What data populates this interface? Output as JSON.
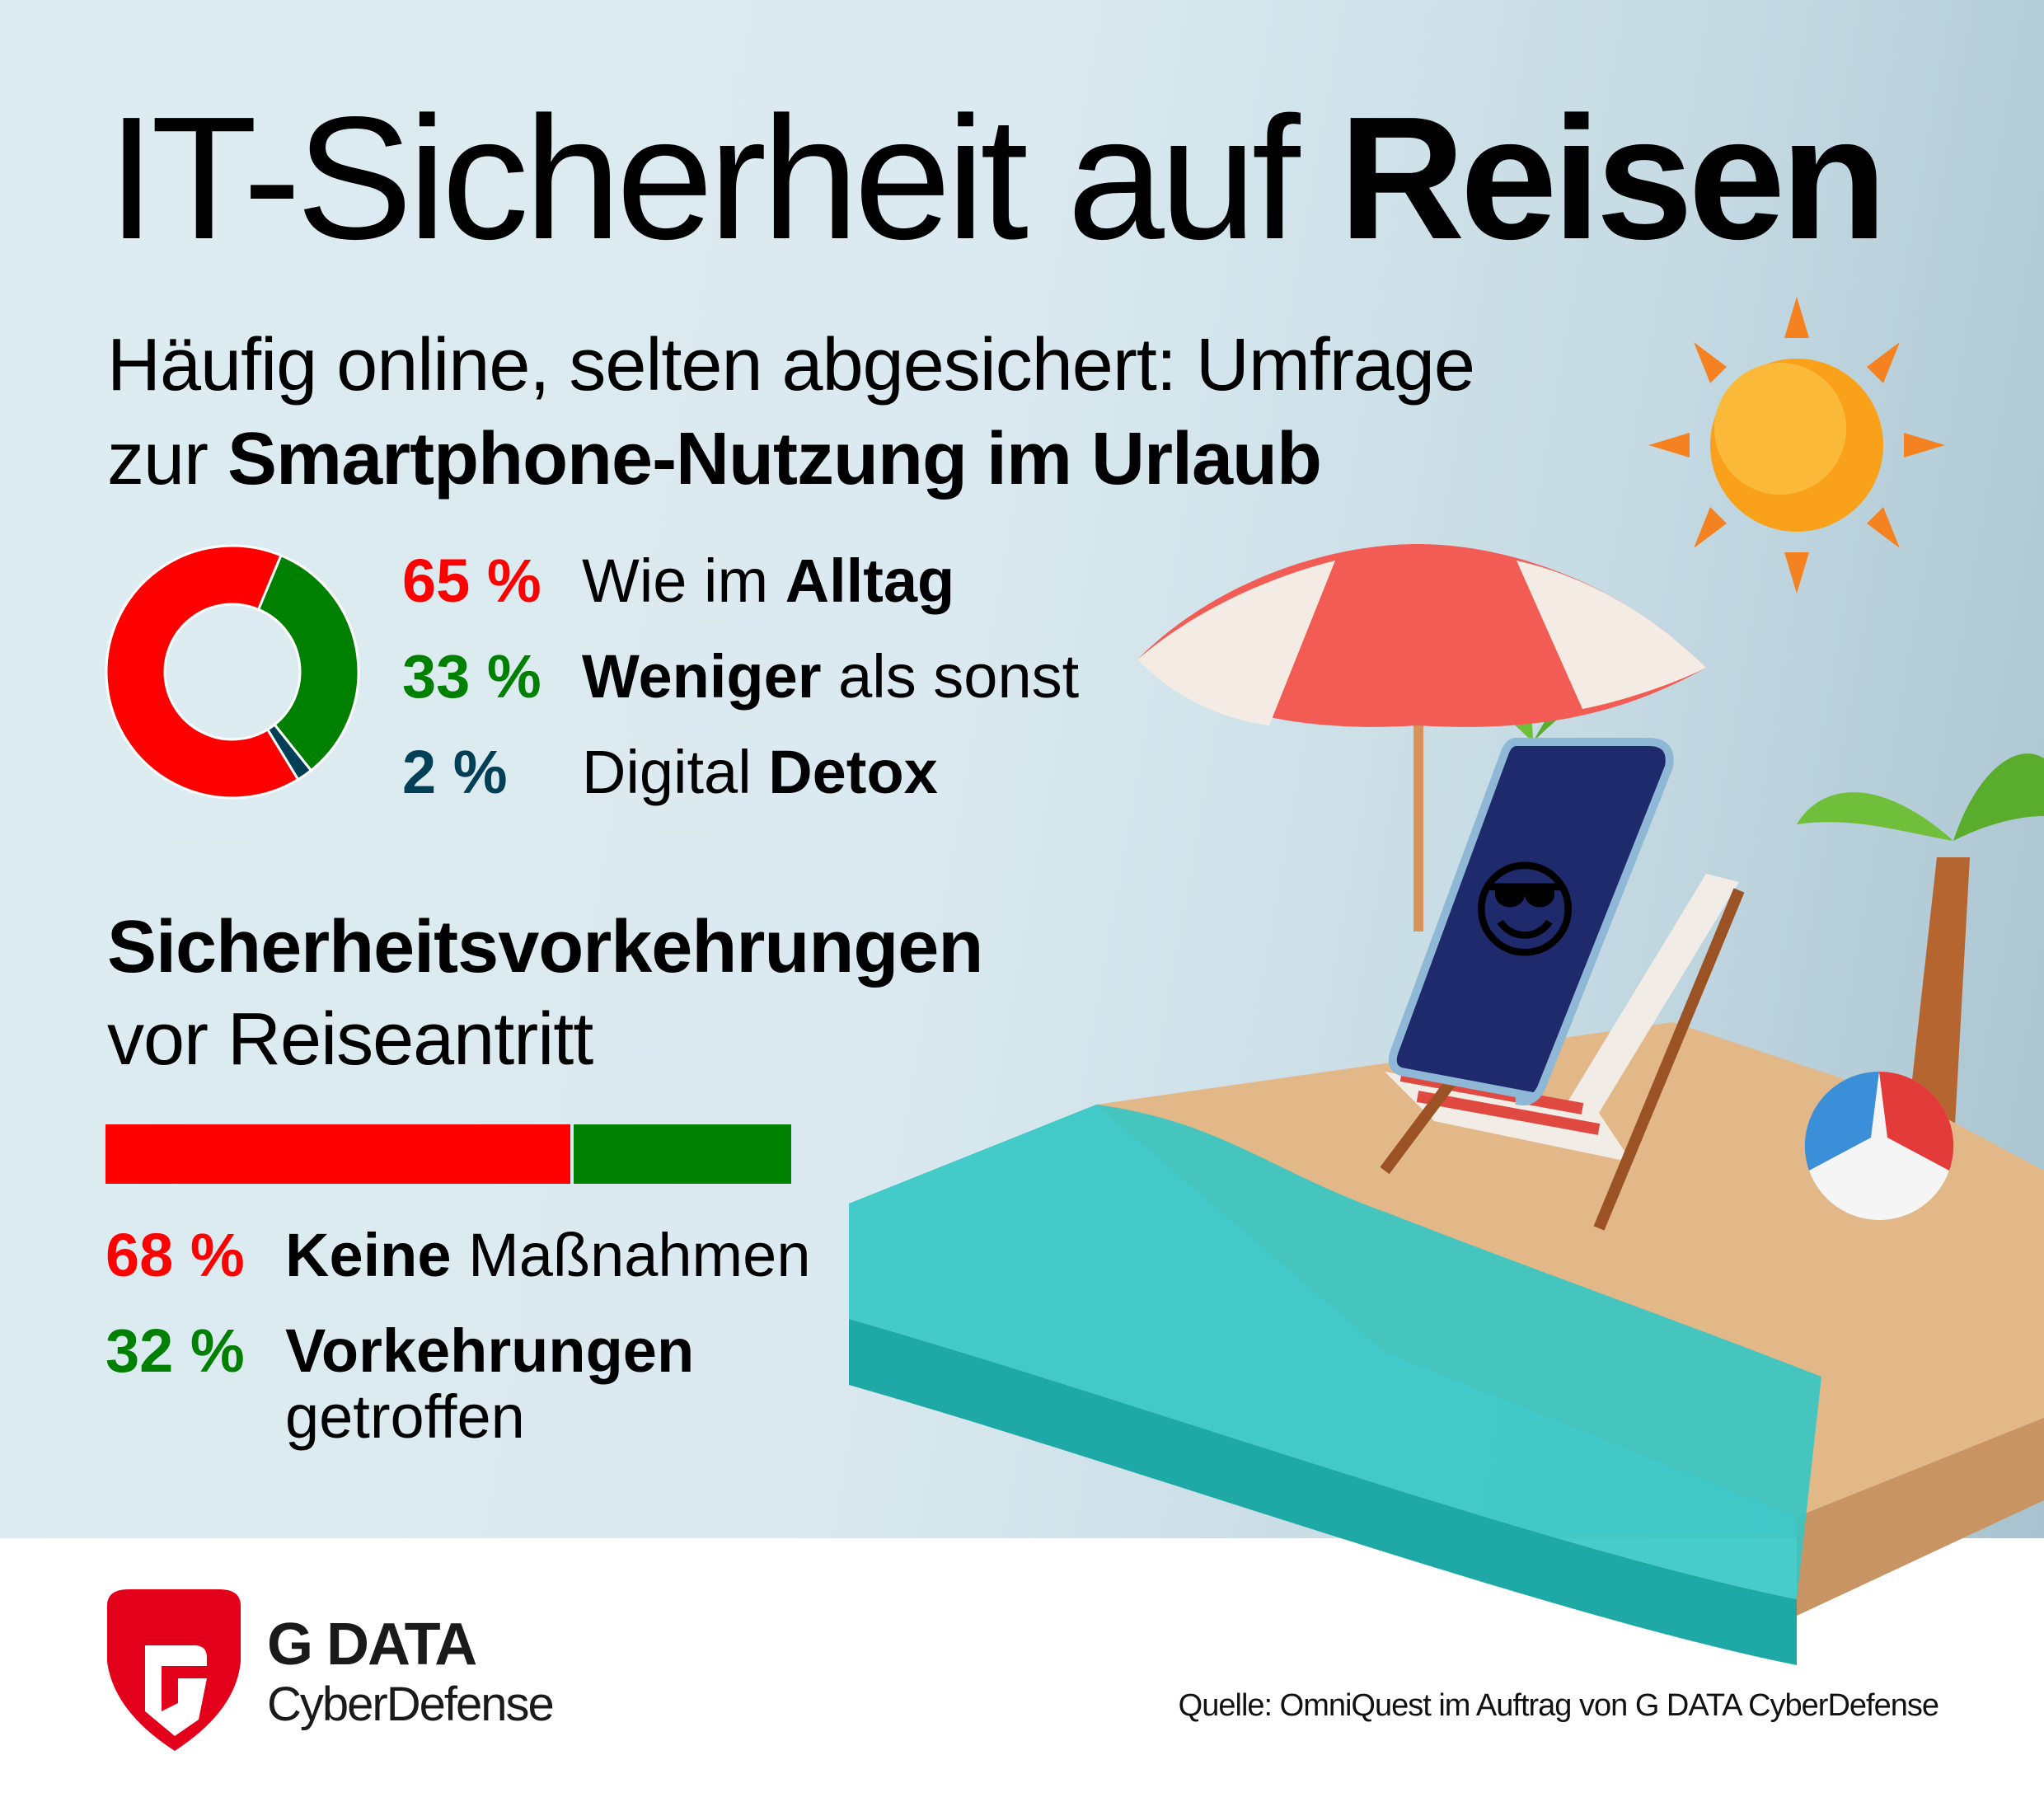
{
  "title": {
    "regular": "IT-Sicherheit auf ",
    "bold": "Reisen"
  },
  "subtitle": {
    "line1": "Häufig online, selten abgesichert: Umfrage",
    "line2_regular": "zur ",
    "line2_bold": "Smartphone-Nutzung im Urlaub"
  },
  "usage": {
    "items": [
      {
        "percent": "65 %",
        "value": 65,
        "label_regular": "Wie im ",
        "label_bold": "Alltag",
        "label_rest": "",
        "color": "#ff0000"
      },
      {
        "percent": "33 %",
        "value": 33,
        "label_regular": "",
        "label_bold": "Weniger",
        "label_rest": " als sonst",
        "color": "#008000"
      },
      {
        "percent": "2 %",
        "value": 2,
        "label_regular": "Digital ",
        "label_bold": "Detox",
        "label_rest": "",
        "color": "#003f55"
      }
    ]
  },
  "precautions": {
    "heading": "Sicherheitsvorkehrungen",
    "subheading": "vor Reiseantritt",
    "items": [
      {
        "percent": "68 %",
        "value": 68,
        "label_bold": "Keine",
        "label_rest": " Maßnahmen",
        "color": "#ff0000"
      },
      {
        "percent": "32 %",
        "value": 32,
        "label_bold": "Vorkehrungen",
        "label_rest": "getroffen",
        "color": "#008000"
      }
    ]
  },
  "footer": {
    "logo_name": "G DATA",
    "logo_sub": "CyberDefense",
    "source": "Quelle: OmniQuest im Auftrag von G DATA CyberDefense"
  },
  "illustration": {
    "phone_emoji": "😎"
  }
}
